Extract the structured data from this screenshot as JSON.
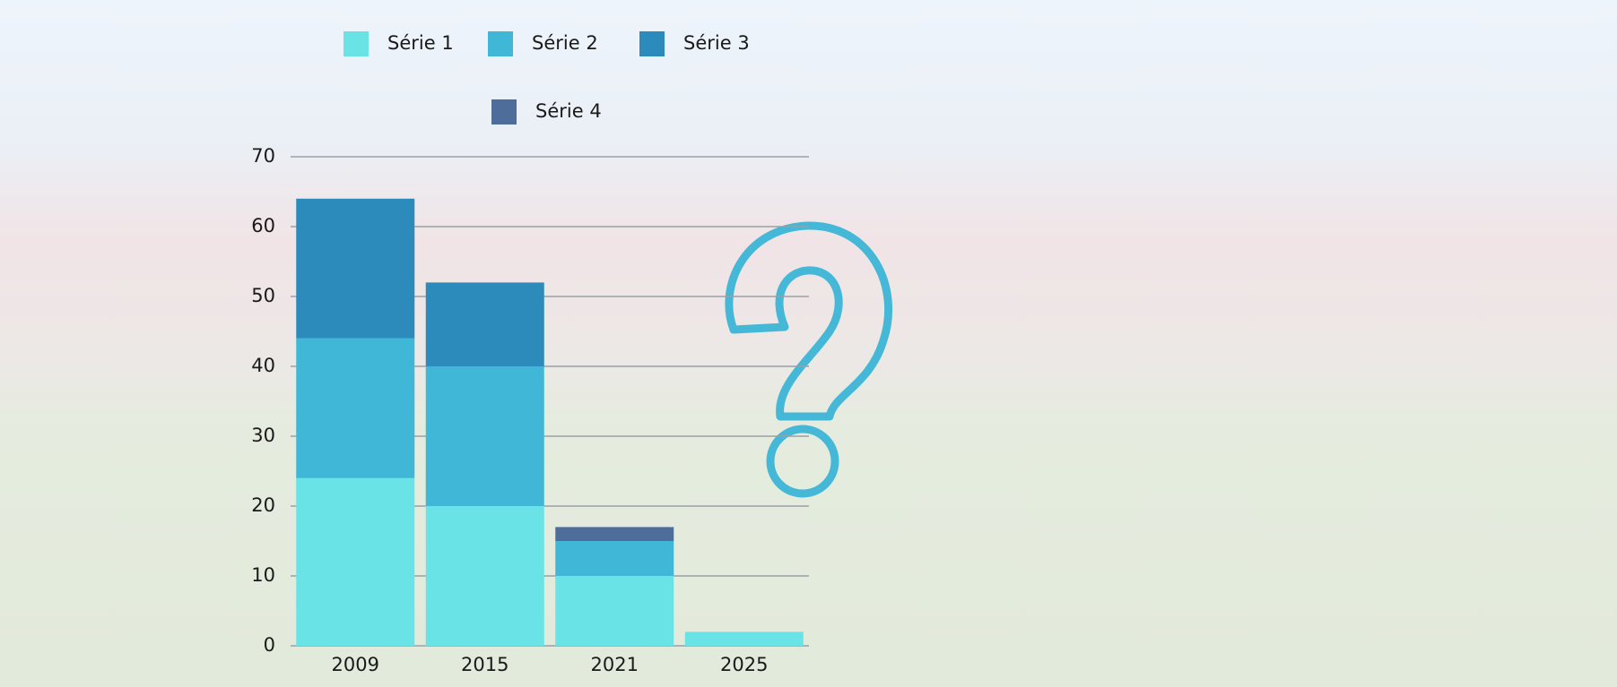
{
  "chart_data": {
    "type": "stacked-bar",
    "categories": [
      "2009",
      "2015",
      "2021",
      "2025"
    ],
    "series": [
      {
        "name": "Série 1",
        "color": "#6ae3e6",
        "values": [
          24,
          20,
          10,
          2
        ]
      },
      {
        "name": "Série 2",
        "color": "#40b7d6",
        "values": [
          20,
          20,
          5,
          0
        ]
      },
      {
        "name": "Série 3",
        "color": "#2c8bbb",
        "values": [
          20,
          12,
          0,
          0
        ]
      },
      {
        "name": "Série 4",
        "color": "#4f6d9a",
        "values": [
          0,
          0,
          2,
          0
        ]
      }
    ],
    "ylim": [
      0,
      70
    ],
    "yticks": [
      0,
      10,
      20,
      30,
      40,
      50,
      60,
      70
    ],
    "grid": true
  }
}
